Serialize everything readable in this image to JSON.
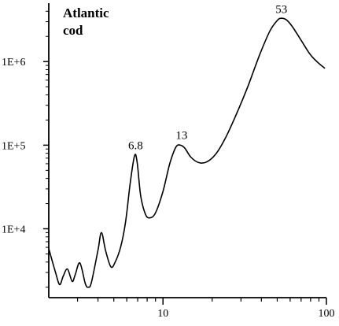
{
  "chart_data": {
    "type": "line",
    "title_lines": [
      "Atlantic",
      "cod"
    ],
    "xlabel": "",
    "ylabel": "",
    "x_scale": "log",
    "y_scale": "log",
    "xlim": [
      2,
      100
    ],
    "ylim": [
      1500,
      5000000
    ],
    "grid": false,
    "x_ticks": [
      {
        "value": 10,
        "label": "10"
      },
      {
        "value": 100,
        "label": "100"
      }
    ],
    "x_minor_ticks": [
      3,
      4,
      5,
      6,
      7,
      8,
      9,
      20,
      30,
      40,
      50,
      60,
      70,
      80,
      90
    ],
    "y_ticks": [
      {
        "value": 10000,
        "label": "1E+4"
      },
      {
        "value": 100000,
        "label": "1E+5"
      },
      {
        "value": 1000000,
        "label": "1E+6"
      }
    ],
    "annotations": [
      {
        "text": "6.8",
        "x": 6.8,
        "y": 75000
      },
      {
        "text": "13",
        "x": 13,
        "y": 100000
      },
      {
        "text": "53",
        "x": 53,
        "y": 3200000
      }
    ],
    "series": [
      {
        "points": [
          [
            2.0,
            5800
          ],
          [
            2.2,
            3000
          ],
          [
            2.33,
            2150
          ],
          [
            2.45,
            2700
          ],
          [
            2.6,
            3300
          ],
          [
            2.78,
            2350
          ],
          [
            2.9,
            2800
          ],
          [
            3.1,
            3900
          ],
          [
            3.35,
            2200
          ],
          [
            3.5,
            2000
          ],
          [
            3.65,
            2300
          ],
          [
            4.0,
            5500
          ],
          [
            4.2,
            9000
          ],
          [
            4.45,
            5500
          ],
          [
            4.8,
            3500
          ],
          [
            5.1,
            4000
          ],
          [
            5.5,
            6000
          ],
          [
            5.9,
            12000
          ],
          [
            6.3,
            35000
          ],
          [
            6.7,
            75000
          ],
          [
            6.95,
            62000
          ],
          [
            7.3,
            25000
          ],
          [
            7.8,
            15000
          ],
          [
            8.3,
            13500
          ],
          [
            9.0,
            15500
          ],
          [
            10.0,
            28000
          ],
          [
            11.0,
            60000
          ],
          [
            12.0,
            95000
          ],
          [
            12.8,
            100000
          ],
          [
            13.6,
            92000
          ],
          [
            14.8,
            72000
          ],
          [
            16.5,
            62000
          ],
          [
            18.5,
            63000
          ],
          [
            21.0,
            78000
          ],
          [
            24.0,
            120000
          ],
          [
            28.0,
            230000
          ],
          [
            33.0,
            500000
          ],
          [
            39.0,
            1200000
          ],
          [
            45.0,
            2300000
          ],
          [
            50.0,
            3100000
          ],
          [
            53.0,
            3300000
          ],
          [
            57.0,
            3150000
          ],
          [
            62.0,
            2600000
          ],
          [
            70.0,
            1800000
          ],
          [
            80.0,
            1200000
          ],
          [
            90.0,
            950000
          ],
          [
            98.0,
            830000
          ]
        ]
      }
    ]
  }
}
